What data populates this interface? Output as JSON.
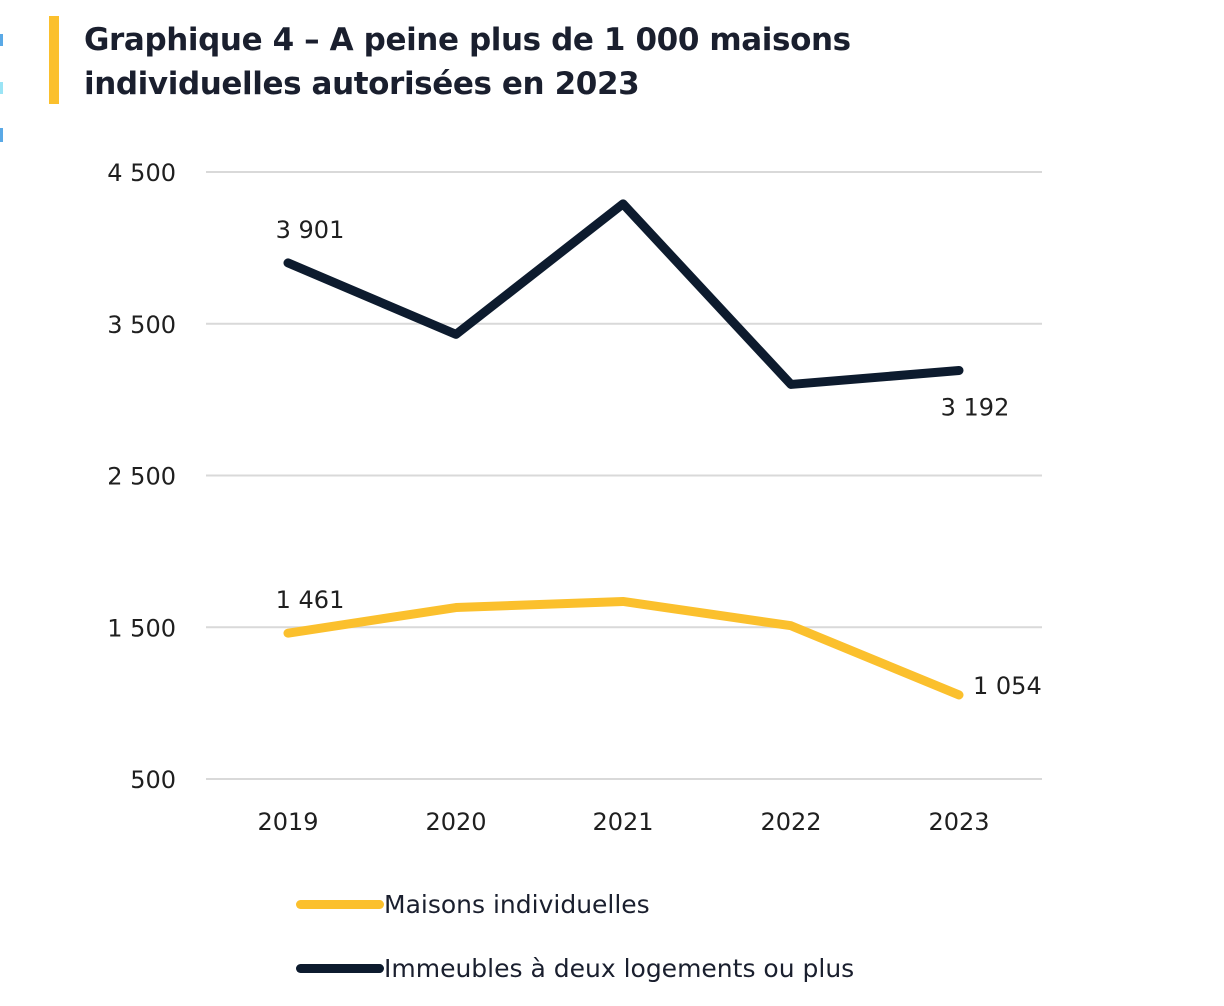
{
  "title": {
    "line1": "Graphique 4 – A peine plus de 1 000 maisons",
    "line2": "individuelles autorisées en 2023"
  },
  "colors": {
    "accent_bar": "#fbc02d",
    "maisons": "#fbc02d",
    "immeubles": "#0d1b2e",
    "grid": "#d9d9d9"
  },
  "chart_data": {
    "type": "line",
    "title": "Graphique 4 – A peine plus de 1 000 maisons individuelles autorisées en 2023",
    "xlabel": "",
    "ylabel": "",
    "categories": [
      "2019",
      "2020",
      "2021",
      "2022",
      "2023"
    ],
    "ylim": [
      500,
      4500
    ],
    "yticks": [
      500,
      1500,
      2500,
      3500,
      4500
    ],
    "ytick_labels": [
      "500",
      "1 500",
      "2 500",
      "3 500",
      "4 500"
    ],
    "grid": true,
    "legend_position": "bottom",
    "series": [
      {
        "name": "Maisons individuelles",
        "color": "#fbc02d",
        "values": [
          1461,
          1630,
          1670,
          1510,
          1054
        ],
        "labels": [
          {
            "index": 0,
            "text": "1 461",
            "position": "above"
          },
          {
            "index": 4,
            "text": "1 054",
            "position": "right"
          }
        ]
      },
      {
        "name": "Immeubles à deux logements ou plus",
        "color": "#0d1b2e",
        "values": [
          3901,
          3430,
          4290,
          3100,
          3192
        ],
        "labels": [
          {
            "index": 0,
            "text": "3 901",
            "position": "above"
          },
          {
            "index": 4,
            "text": "3 192",
            "position": "below"
          }
        ]
      }
    ]
  }
}
